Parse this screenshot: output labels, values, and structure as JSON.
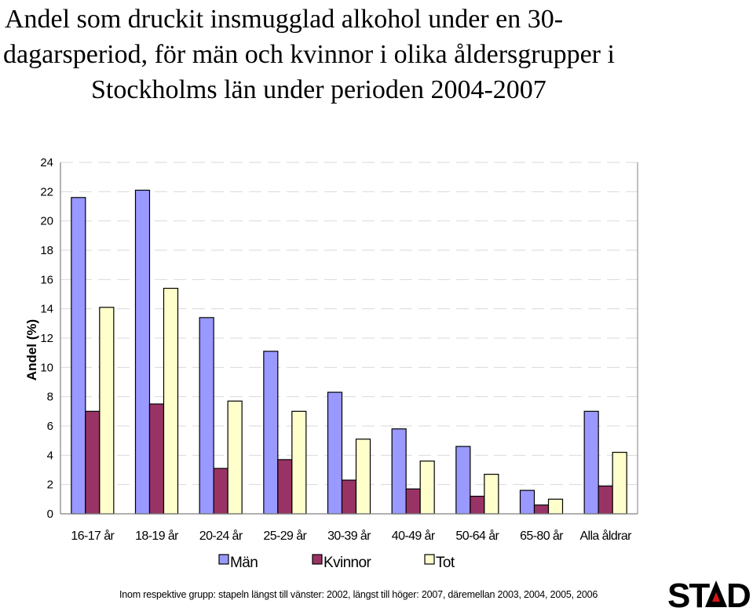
{
  "title": {
    "line1": "Andel som druckit insmugglad alkohol under en 30-",
    "line2": "dagarsperiod, för män och kvinnor i olika åldersgrupper i",
    "line3": "Stockholms län under perioden 2004-2007"
  },
  "footnote": "Inom respektive grupp: stapeln längst till vänster: 2002, längst till höger: 2007, däremellan 2003, 2004, 2005, 2006",
  "logo_text": "STAD",
  "colors": {
    "man": "#9999ff",
    "kvinnor": "#993366",
    "tot": "#ffffcc",
    "axis": "#808080",
    "grid": "#d9d9d9"
  },
  "chart_data": {
    "type": "bar",
    "title": "Andel som druckit insmugglad alkohol under en 30-dagarsperiod, för män och kvinnor i olika åldersgrupper i Stockholms län under perioden 2004-2007",
    "xlabel": "",
    "ylabel": "Andel (%)",
    "ylim": [
      0,
      24
    ],
    "yticks": [
      "0",
      "2",
      "4",
      "6",
      "8",
      "10",
      "12",
      "14",
      "16",
      "18",
      "20",
      "22",
      "24"
    ],
    "grid": true,
    "legend_position": "bottom",
    "categories": [
      "16-17 år",
      "18-19 år",
      "20-24 år",
      "25-29 år",
      "30-39 år",
      "40-49 år",
      "50-64 år",
      "65-80 år",
      "Alla åldrar"
    ],
    "series": [
      {
        "name": "Män",
        "color": "#9999ff",
        "values": [
          21.6,
          22.1,
          13.4,
          11.1,
          8.3,
          5.8,
          4.6,
          1.6,
          7.0
        ]
      },
      {
        "name": "Kvinnor",
        "color": "#993366",
        "values": [
          7.0,
          7.5,
          3.1,
          3.7,
          2.3,
          1.7,
          1.2,
          0.6,
          1.9
        ]
      },
      {
        "name": "Tot",
        "color": "#ffffcc",
        "values": [
          14.1,
          15.4,
          7.7,
          7.0,
          5.1,
          3.6,
          2.7,
          1.0,
          4.2
        ]
      }
    ]
  }
}
